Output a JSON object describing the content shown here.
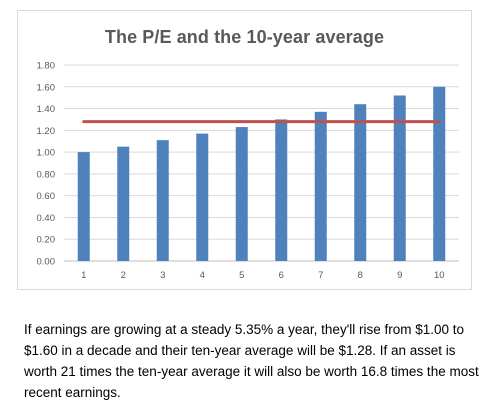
{
  "chart_data": {
    "type": "bar",
    "title": "The P/E and the 10-year average",
    "xlabel": "",
    "ylabel": "",
    "categories": [
      "1",
      "2",
      "3",
      "4",
      "5",
      "6",
      "7",
      "8",
      "9",
      "10"
    ],
    "series": [
      {
        "type": "bar",
        "color": "#4f81bd",
        "values": [
          1.0,
          1.05,
          1.11,
          1.17,
          1.23,
          1.3,
          1.37,
          1.44,
          1.52,
          1.6
        ]
      },
      {
        "type": "line",
        "color": "#c0504d",
        "values": [
          1.28,
          1.28,
          1.28,
          1.28,
          1.28,
          1.28,
          1.28,
          1.28,
          1.28,
          1.28
        ]
      }
    ],
    "ylim": [
      0,
      1.8
    ],
    "yticks": [
      "0.00",
      "0.20",
      "0.40",
      "0.60",
      "0.80",
      "1.00",
      "1.20",
      "1.40",
      "1.60",
      "1.80"
    ],
    "grid": true,
    "legend": "none"
  },
  "caption": "If earnings are growing at a steady 5.35% a year, they'll rise from $1.00 to $1.60 in a decade and their ten-year average will be $1.28. If an asset is worth 21 times the ten-year average it will also be worth 16.8 times the most recent earnings."
}
